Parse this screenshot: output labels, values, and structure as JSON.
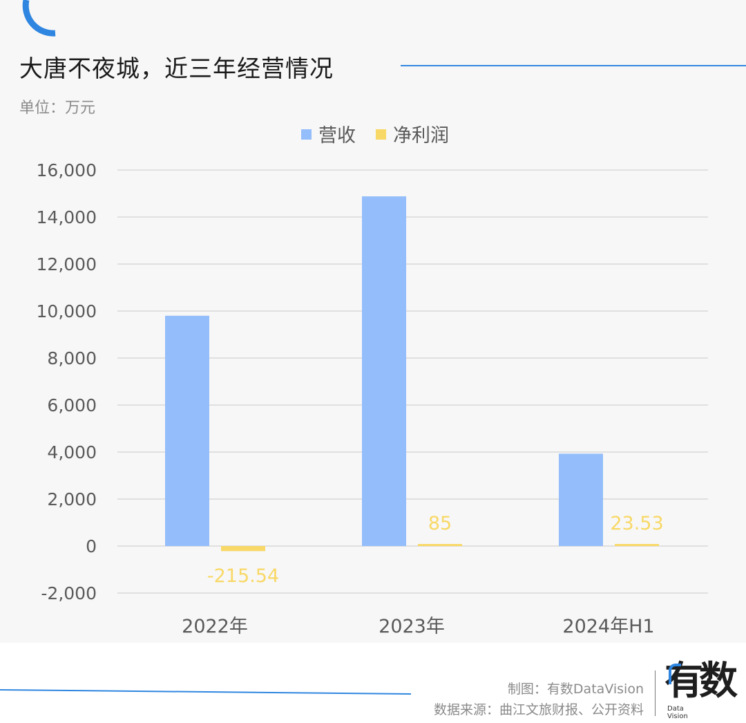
{
  "page": {
    "title": "大唐不夜城，近三年经营情况",
    "unit": "单位：万元",
    "credits": {
      "made_by": "制图：有数DataVision",
      "source": "数据来源：曲江文旅财报、公开资料"
    },
    "logo": {
      "chars": "有数",
      "sub_line1": "Data",
      "sub_line2": "Vision"
    },
    "colors": {
      "accent": "#2f86e0",
      "revenue": "#94bdfb",
      "net_profit": "#f8d866",
      "grid": "#d9d9d9",
      "tick_text": "#595959"
    }
  },
  "chart_data": {
    "type": "bar",
    "title": "大唐不夜城，近三年经营情况",
    "ylabel": "单位：万元",
    "xlabel": "",
    "categories": [
      "2022年",
      "2023年",
      "2024年H1"
    ],
    "series": [
      {
        "name": "营收",
        "color": "#94bdfb",
        "values": [
          9800,
          14880,
          3930
        ],
        "labels": [
          "",
          "",
          ""
        ]
      },
      {
        "name": "净利润",
        "color": "#f8d866",
        "values": [
          -215.54,
          85,
          23.53
        ],
        "labels": [
          "-215.54",
          "85",
          "23.53"
        ]
      }
    ],
    "ylim": [
      -2000,
      16000
    ],
    "yticks": [
      -2000,
      0,
      2000,
      4000,
      6000,
      8000,
      10000,
      12000,
      14000,
      16000
    ],
    "ytick_labels": [
      "-2,000",
      "0",
      "2,000",
      "4,000",
      "6,000",
      "8,000",
      "10,000",
      "12,000",
      "14,000",
      "16,000"
    ],
    "grid": true,
    "legend": "top-center"
  }
}
